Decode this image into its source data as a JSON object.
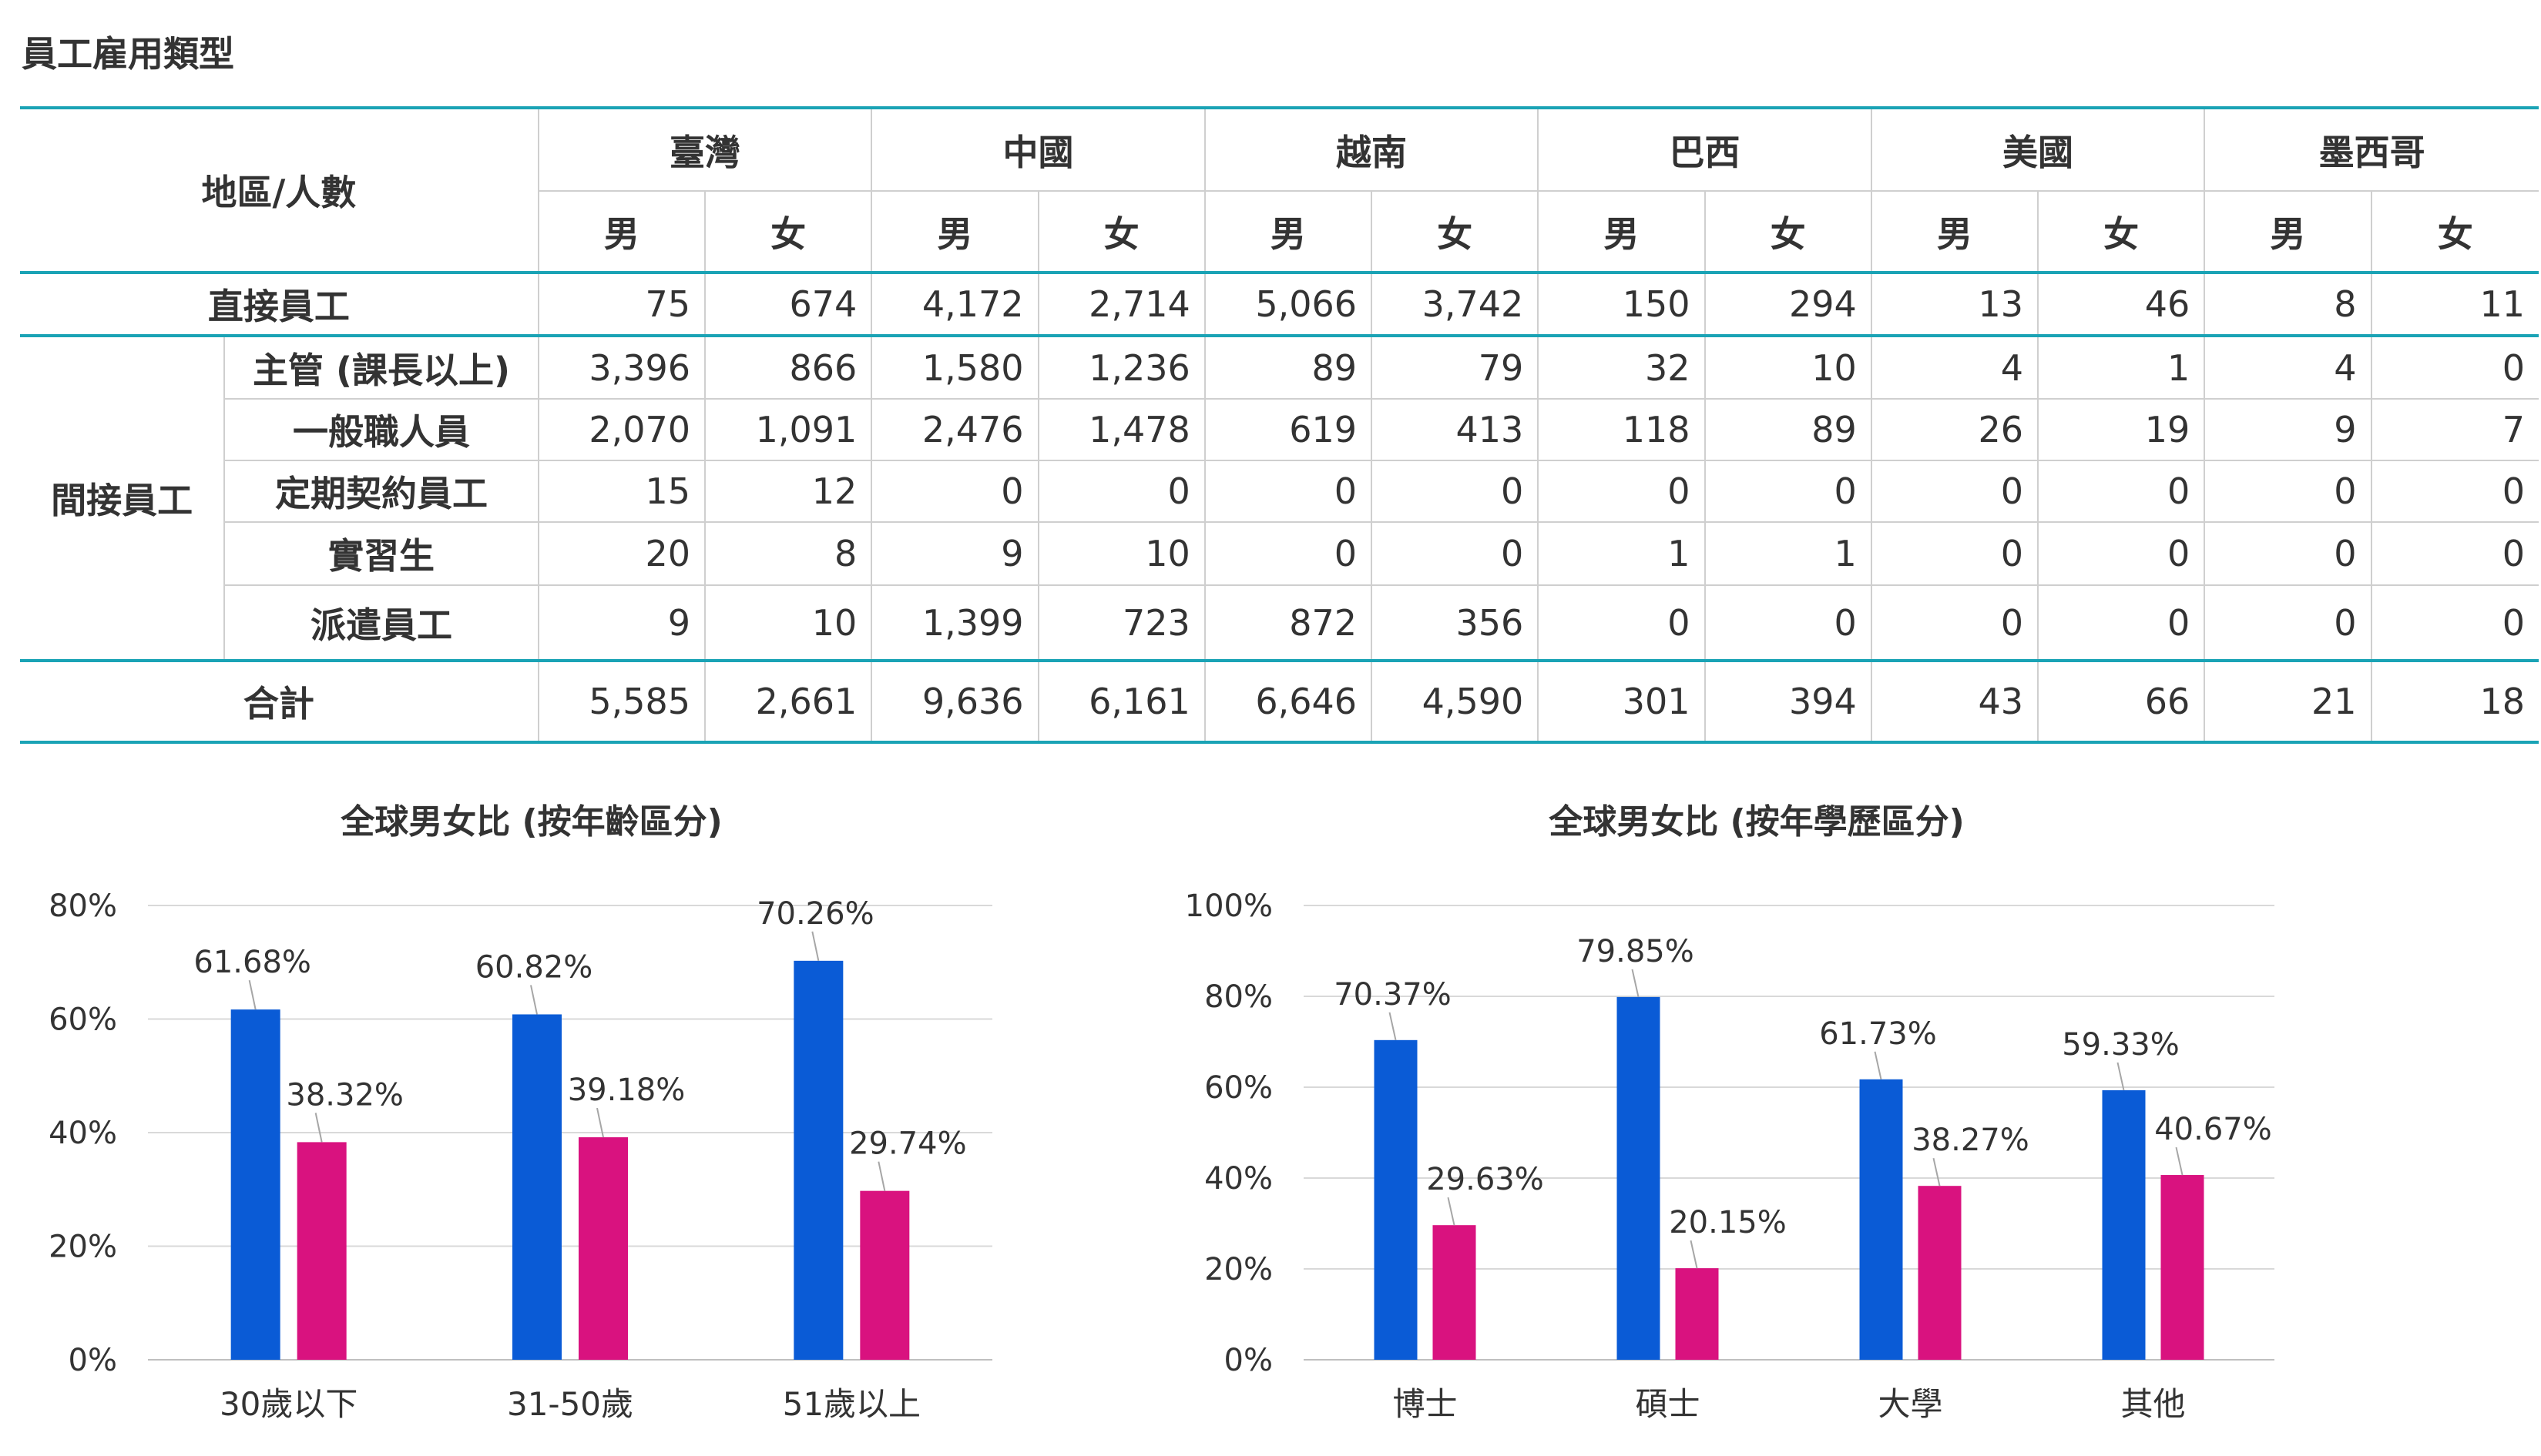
{
  "page_title": "員工雇用類型",
  "table": {
    "corner_label": "地區/人數",
    "regions": [
      "臺灣",
      "中國",
      "越南",
      "巴西",
      "美國",
      "墨西哥"
    ],
    "genders": [
      "男",
      "女"
    ],
    "direct": {
      "label": "直接員工",
      "values": [
        "75",
        "674",
        "4,172",
        "2,714",
        "5,066",
        "3,742",
        "150",
        "294",
        "13",
        "46",
        "8",
        "11"
      ]
    },
    "indirect_label": "間接員工",
    "indirect_rows": [
      {
        "label": "主管 (課長以上)",
        "values": [
          "3,396",
          "866",
          "1,580",
          "1,236",
          "89",
          "79",
          "32",
          "10",
          "4",
          "1",
          "4",
          "0"
        ]
      },
      {
        "label": "一般職人員",
        "values": [
          "2,070",
          "1,091",
          "2,476",
          "1,478",
          "619",
          "413",
          "118",
          "89",
          "26",
          "19",
          "9",
          "7"
        ]
      },
      {
        "label": "定期契約員工",
        "values": [
          "15",
          "12",
          "0",
          "0",
          "0",
          "0",
          "0",
          "0",
          "0",
          "0",
          "0",
          "0"
        ]
      },
      {
        "label": "實習生",
        "values": [
          "20",
          "8",
          "9",
          "10",
          "0",
          "0",
          "1",
          "1",
          "0",
          "0",
          "0",
          "0"
        ]
      },
      {
        "label": "派遣員工",
        "values": [
          "9",
          "10",
          "1,399",
          "723",
          "872",
          "356",
          "0",
          "0",
          "0",
          "0",
          "0",
          "0"
        ]
      }
    ],
    "total": {
      "label": "合計",
      "values": [
        "5,585",
        "2,661",
        "9,636",
        "6,161",
        "6,646",
        "4,590",
        "301",
        "394",
        "43",
        "66",
        "21",
        "18"
      ]
    }
  },
  "colors": {
    "male": "#0a5bd6",
    "female": "#d9127f",
    "accent": "#1aa3b5",
    "grid": "#d9d9d9",
    "text": "#333333"
  },
  "chart_data": [
    {
      "type": "bar",
      "title": "全球男女比 (按年齡區分)",
      "categories": [
        "30歲以下",
        "31-50歲",
        "51歲以上"
      ],
      "series": [
        {
          "values": [
            61.68,
            60.82,
            70.26
          ],
          "labels": [
            "61.68%",
            "60.82%",
            "70.26%"
          ]
        },
        {
          "values": [
            38.32,
            39.18,
            29.74
          ],
          "labels": [
            "38.32%",
            "39.18%",
            "29.74%"
          ]
        }
      ],
      "ylim": [
        0,
        80
      ],
      "yticks": [
        "0%",
        "20%",
        "40%",
        "60%",
        "80%"
      ],
      "grid": true
    },
    {
      "type": "bar",
      "title": "全球男女比 (按年學歷區分)",
      "categories": [
        "博士",
        "碩士",
        "大學",
        "其他"
      ],
      "series": [
        {
          "values": [
            70.37,
            79.85,
            61.73,
            59.33
          ],
          "labels": [
            "70.37%",
            "79.85%",
            "61.73%",
            "59.33%"
          ]
        },
        {
          "values": [
            29.63,
            20.15,
            38.27,
            40.67
          ],
          "labels": [
            "29.63%",
            "20.15%",
            "38.27%",
            "40.67%"
          ]
        }
      ],
      "ylim": [
        0,
        100
      ],
      "yticks": [
        "0%",
        "20%",
        "40%",
        "60%",
        "80%",
        "100%"
      ],
      "grid": true
    }
  ]
}
